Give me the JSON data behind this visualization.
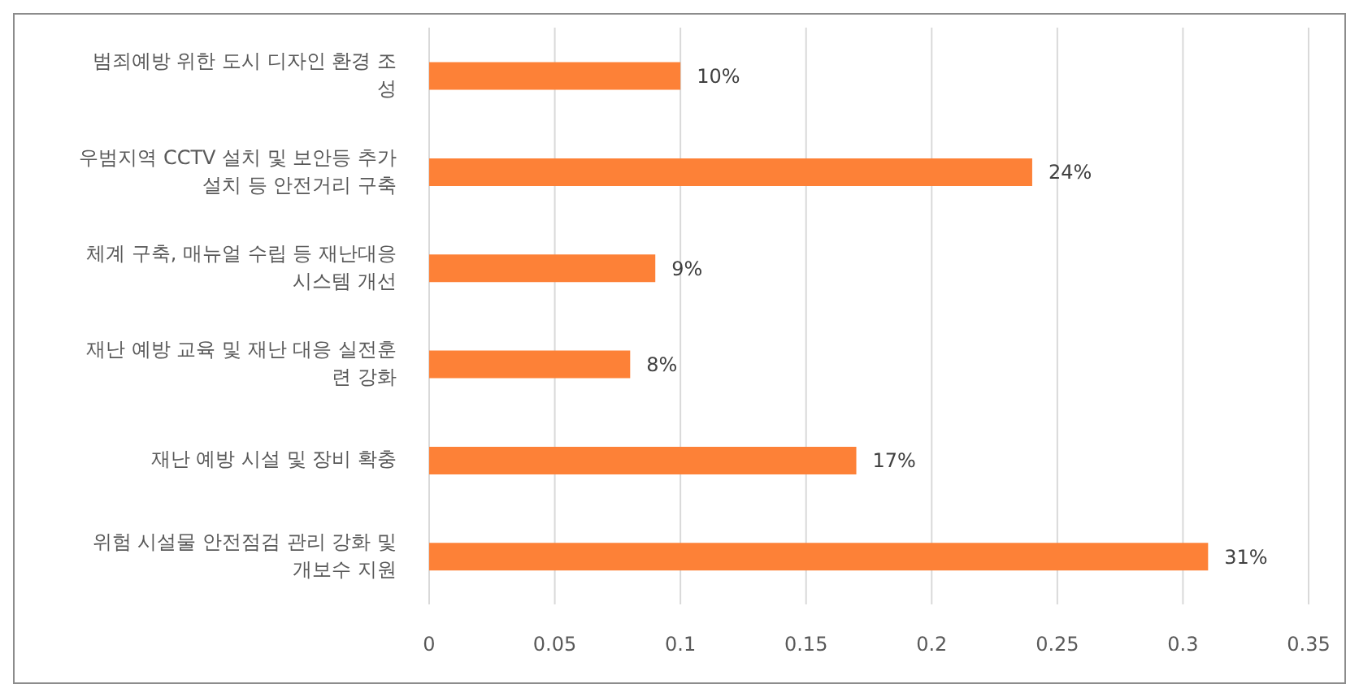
{
  "chart_data": {
    "type": "bar",
    "orientation": "horizontal",
    "categories": [
      "범죄예방 위한 도시 디자인 환경 조성",
      "우범지역 CCTV 설치 및 보안등 추가 설치 등 안전거리 구축",
      "체계 구축, 매뉴얼 수립 등 재난대응 시스템 개선",
      "재난 예방 교육 및 재난 대응 실전훈련 강화",
      "재난 예방 시설 및 장비 확충",
      "위험 시설물 안전점검 관리 강화 및 개보수 지원"
    ],
    "values": [
      0.1,
      0.24,
      0.09,
      0.08,
      0.17,
      0.31
    ],
    "value_labels": [
      "10%",
      "24%",
      "9%",
      "8%",
      "17%",
      "31%"
    ],
    "color": "#fd8137",
    "xlim": [
      0,
      0.35
    ],
    "xticks": [
      0,
      0.05,
      0.1,
      0.15,
      0.2,
      0.25,
      0.3,
      0.35
    ],
    "grid": "x",
    "legend": false
  }
}
